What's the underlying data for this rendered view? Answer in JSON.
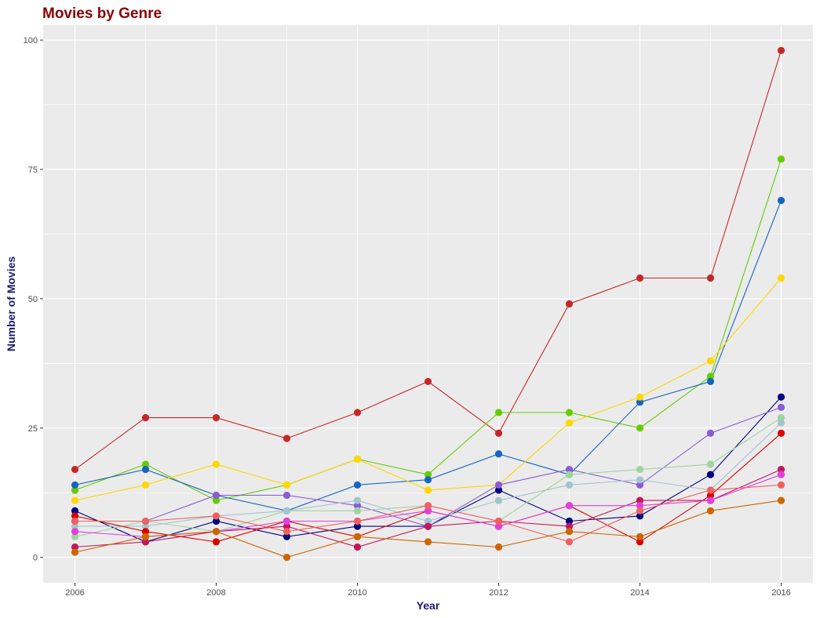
{
  "chart_data": {
    "type": "line",
    "title": "Movies by Genre",
    "xlabel": "Year",
    "ylabel": "Number of Movies",
    "xlim": [
      2005.55,
      2016.45
    ],
    "ylim": [
      -4.9,
      102.9
    ],
    "x_ticks": [
      2006,
      2008,
      2010,
      2012,
      2014,
      2016
    ],
    "y_ticks": [
      0,
      25,
      50,
      75,
      100
    ],
    "grid": true,
    "legend": "none",
    "x": [
      2006,
      2007,
      2008,
      2009,
      2010,
      2011,
      2012,
      2013,
      2014,
      2015,
      2016
    ],
    "series": [
      {
        "color": "#C62828",
        "values": [
          17,
          27,
          27,
          23,
          28,
          34,
          24,
          49,
          54,
          54,
          98
        ]
      },
      {
        "color": "#66CC00",
        "values": [
          13,
          18,
          11,
          14,
          19,
          16,
          28,
          28,
          25,
          35,
          77
        ]
      },
      {
        "color": "#1565C0",
        "values": [
          14,
          17,
          12,
          9,
          14,
          15,
          20,
          16,
          30,
          34,
          69
        ]
      },
      {
        "color": "#FFD700",
        "values": [
          11,
          14,
          18,
          14,
          19,
          13,
          14,
          26,
          31,
          38,
          54
        ]
      },
      {
        "color": "#000080",
        "values": [
          9,
          3,
          7,
          4,
          6,
          6,
          13,
          7,
          8,
          16,
          31
        ]
      },
      {
        "color": "#8A5CD6",
        "values": [
          7,
          7,
          12,
          12,
          10,
          6,
          14,
          17,
          14,
          24,
          29
        ]
      },
      {
        "color": "#9ED49E",
        "values": [
          4,
          7,
          5,
          9,
          9,
          10,
          7,
          16,
          17,
          18,
          27
        ]
      },
      {
        "color": "#A3C4CF",
        "values": [
          6,
          6,
          8,
          9,
          11,
          7,
          11,
          14,
          15,
          13,
          26
        ]
      },
      {
        "color": "#DD0000",
        "values": [
          8,
          5,
          3,
          7,
          4,
          9,
          6,
          10,
          3,
          12,
          24
        ]
      },
      {
        "color": "#C2185B",
        "values": [
          2,
          3,
          5,
          6,
          2,
          6,
          7,
          6,
          11,
          11,
          17
        ]
      },
      {
        "color": "#E040E0",
        "values": [
          5,
          4,
          5,
          7,
          7,
          9,
          6,
          10,
          10,
          11,
          16
        ]
      },
      {
        "color": "#F06060",
        "values": [
          7,
          7,
          8,
          5,
          7,
          10,
          7,
          3,
          9,
          13,
          14
        ]
      },
      {
        "color": "#CC6600",
        "values": [
          1,
          4,
          5,
          0,
          4,
          3,
          2,
          5,
          4,
          9,
          11
        ]
      }
    ],
    "colors": {
      "title": "#8B0000",
      "axis_title": "#1A1A6E",
      "panel_bg": "#EBEBEB",
      "grid": "#FFFFFF"
    }
  }
}
